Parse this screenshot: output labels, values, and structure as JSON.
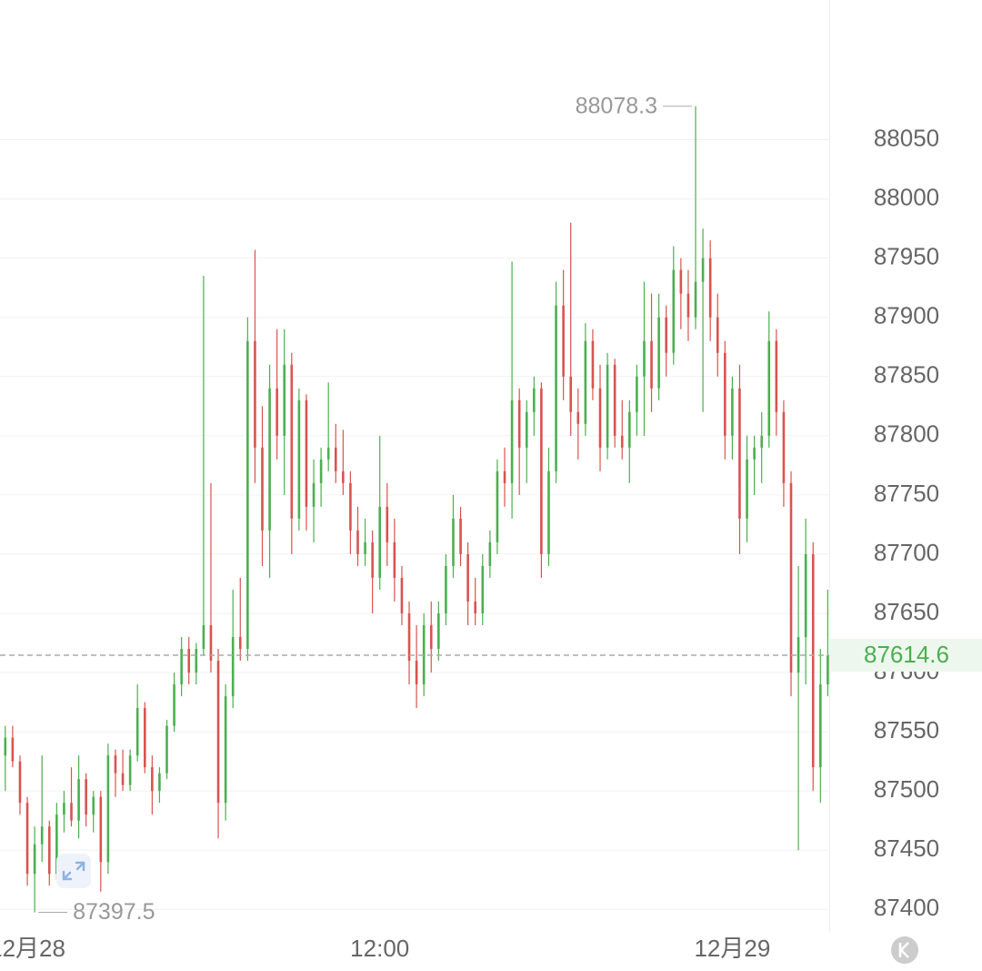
{
  "chart_data": {
    "type": "candlestick",
    "up_color": "#4caf50",
    "down_color": "#d9534f",
    "grid": true,
    "xlim": [
      -0.93,
      27.3
    ],
    "ylim": [
      87381,
      88168
    ],
    "xticks": [
      {
        "value": 0,
        "label": "12月28"
      },
      {
        "value": 12,
        "label": "12:00"
      },
      {
        "value": 24,
        "label": "12月29"
      }
    ],
    "yticks": [
      87400,
      87450,
      87500,
      87550,
      87600,
      87650,
      87700,
      87750,
      87800,
      87850,
      87900,
      87950,
      88000,
      88050
    ],
    "x": [
      -0.75,
      -0.5,
      -0.25,
      0,
      0.25,
      0.5,
      0.75,
      1,
      1.25,
      1.5,
      1.75,
      2,
      2.25,
      2.5,
      2.75,
      3,
      3.25,
      3.5,
      3.75,
      4,
      4.25,
      4.5,
      4.75,
      5,
      5.25,
      5.5,
      5.75,
      6,
      6.25,
      6.5,
      6.75,
      7,
      7.25,
      7.5,
      7.75,
      8,
      8.25,
      8.5,
      8.75,
      9,
      9.25,
      9.5,
      9.75,
      10,
      10.25,
      10.5,
      10.75,
      11,
      11.25,
      11.5,
      11.75,
      12,
      12.25,
      12.5,
      12.75,
      13,
      13.25,
      13.5,
      13.75,
      14,
      14.25,
      14.5,
      14.75,
      15,
      15.25,
      15.5,
      15.75,
      16,
      16.25,
      16.5,
      16.75,
      17,
      17.25,
      17.5,
      17.75,
      18,
      18.25,
      18.5,
      18.75,
      19,
      19.25,
      19.5,
      19.75,
      20,
      20.25,
      20.5,
      20.75,
      21,
      21.25,
      21.5,
      21.75,
      22,
      22.25,
      22.5,
      22.75,
      23,
      23.25,
      23.5,
      23.75,
      24,
      24.25,
      24.5,
      24.75,
      25,
      25.25,
      25.5,
      25.75,
      26,
      26.25,
      26.5,
      26.75,
      27,
      27.25
    ],
    "open": [
      87530,
      87545,
      87525,
      87490,
      87430,
      87455,
      87470,
      87430,
      87480,
      87490,
      87475,
      87510,
      87480,
      87495,
      87440,
      87530,
      87515,
      87505,
      87530,
      87570,
      87520,
      87500,
      87515,
      87555,
      87590,
      87620,
      87600,
      87620,
      87640,
      87610,
      87490,
      87580,
      87630,
      87620,
      87880,
      87790,
      87720,
      87840,
      87800,
      87860,
      87730,
      87830,
      87740,
      87760,
      87780,
      87790,
      87770,
      87760,
      87720,
      87700,
      87710,
      87680,
      87740,
      87710,
      87680,
      87650,
      87610,
      87590,
      87640,
      87620,
      87650,
      87690,
      87730,
      87700,
      87660,
      87650,
      87690,
      87710,
      87770,
      87760,
      87830,
      87790,
      87820,
      87840,
      87700,
      87770,
      87910,
      87850,
      87820,
      87810,
      87880,
      87840,
      87790,
      87860,
      87800,
      87790,
      87820,
      87850,
      87880,
      87840,
      87900,
      87870,
      87940,
      87920,
      87900,
      87930,
      87950,
      87900,
      87870,
      87800,
      87840,
      87730,
      87780,
      87790,
      87800,
      87880,
      87820,
      87760,
      87600,
      87630,
      87700,
      87520,
      87590
    ],
    "high": [
      87555,
      87555,
      87530,
      87495,
      87470,
      87530,
      87475,
      87490,
      87500,
      87520,
      87530,
      87515,
      87500,
      87500,
      87540,
      87535,
      87535,
      87535,
      87590,
      87575,
      87530,
      87520,
      87560,
      87600,
      87630,
      87630,
      87625,
      87935,
      87760,
      87620,
      87590,
      87670,
      87680,
      87900,
      87957,
      87825,
      87860,
      87890,
      87890,
      87870,
      87840,
      87835,
      87780,
      87790,
      87845,
      87810,
      87805,
      87770,
      87740,
      87730,
      87720,
      87800,
      87760,
      87730,
      87690,
      87660,
      87640,
      87650,
      87660,
      87660,
      87700,
      87750,
      87740,
      87710,
      87680,
      87700,
      87720,
      87780,
      87790,
      87947,
      87840,
      87830,
      87850,
      87845,
      87790,
      87930,
      87940,
      87980,
      87840,
      87895,
      87890,
      87860,
      87870,
      87865,
      87830,
      87830,
      87860,
      87930,
      87920,
      87920,
      87910,
      87960,
      87950,
      87940,
      88078.3,
      87975,
      87965,
      87920,
      87880,
      87850,
      87860,
      87800,
      87800,
      87820,
      87905,
      87890,
      87830,
      87770,
      87690,
      87730,
      87710,
      87620,
      87670
    ],
    "low": [
      87500,
      87520,
      87480,
      87420,
      87397.5,
      87440,
      87420,
      87425,
      87465,
      87470,
      87460,
      87470,
      87465,
      87415,
      87430,
      87495,
      87500,
      87500,
      87525,
      87515,
      87480,
      87490,
      87510,
      87550,
      87580,
      87590,
      87590,
      87615,
      87600,
      87460,
      87475,
      87570,
      87610,
      87610,
      87760,
      87690,
      87680,
      87780,
      87750,
      87700,
      87720,
      87720,
      87710,
      87740,
      87770,
      87760,
      87750,
      87700,
      87690,
      87690,
      87650,
      87670,
      87690,
      87660,
      87640,
      87590,
      87570,
      87580,
      87600,
      87610,
      87640,
      87680,
      87690,
      87640,
      87640,
      87640,
      87680,
      87700,
      87740,
      87730,
      87750,
      87760,
      87800,
      87680,
      87690,
      87760,
      87830,
      87800,
      87780,
      87800,
      87830,
      87770,
      87780,
      87790,
      87780,
      87760,
      87800,
      87800,
      87820,
      87830,
      87850,
      87860,
      87890,
      87880,
      87890,
      87820,
      87880,
      87850,
      87780,
      87780,
      87700,
      87710,
      87750,
      87760,
      87790,
      87800,
      87740,
      87580,
      87450,
      87590,
      87500,
      87490,
      87580
    ],
    "close": [
      87545,
      87525,
      87490,
      87430,
      87455,
      87470,
      87430,
      87480,
      87490,
      87475,
      87510,
      87480,
      87495,
      87440,
      87530,
      87515,
      87505,
      87530,
      87570,
      87520,
      87500,
      87515,
      87555,
      87590,
      87620,
      87600,
      87620,
      87640,
      87610,
      87490,
      87580,
      87630,
      87620,
      87880,
      87790,
      87720,
      87840,
      87800,
      87860,
      87730,
      87830,
      87740,
      87760,
      87780,
      87790,
      87770,
      87760,
      87720,
      87700,
      87710,
      87680,
      87740,
      87710,
      87680,
      87650,
      87610,
      87590,
      87640,
      87620,
      87650,
      87690,
      87730,
      87700,
      87660,
      87650,
      87690,
      87710,
      87770,
      87760,
      87830,
      87790,
      87820,
      87840,
      87700,
      87770,
      87910,
      87850,
      87820,
      87810,
      87880,
      87840,
      87790,
      87860,
      87800,
      87790,
      87820,
      87850,
      87880,
      87840,
      87900,
      87870,
      87940,
      87920,
      87900,
      87930,
      87950,
      87900,
      87870,
      87800,
      87840,
      87730,
      87780,
      87790,
      87800,
      87880,
      87820,
      87760,
      87600,
      87630,
      87700,
      87520,
      87590,
      87614.6
    ]
  }
}
